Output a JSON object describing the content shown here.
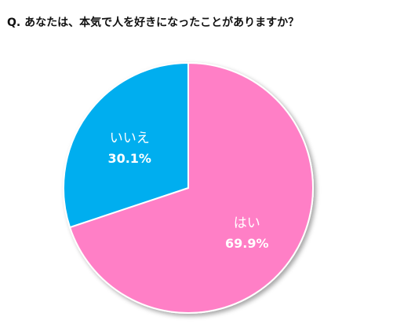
{
  "chart_data": {
    "type": "pie",
    "title": "Q. あなたは、本気で人を好きになったことがありますか？",
    "slices": [
      {
        "label": "はい",
        "value": 69.9,
        "value_label": "69.9%",
        "color": "#FF7FC6"
      },
      {
        "label": "いいえ",
        "value": 30.1,
        "value_label": "30.1%",
        "color": "#00AEEF"
      }
    ],
    "start_angle": "12 o'clock",
    "direction": "clockwise",
    "legend": "none",
    "labels_inside": true
  }
}
